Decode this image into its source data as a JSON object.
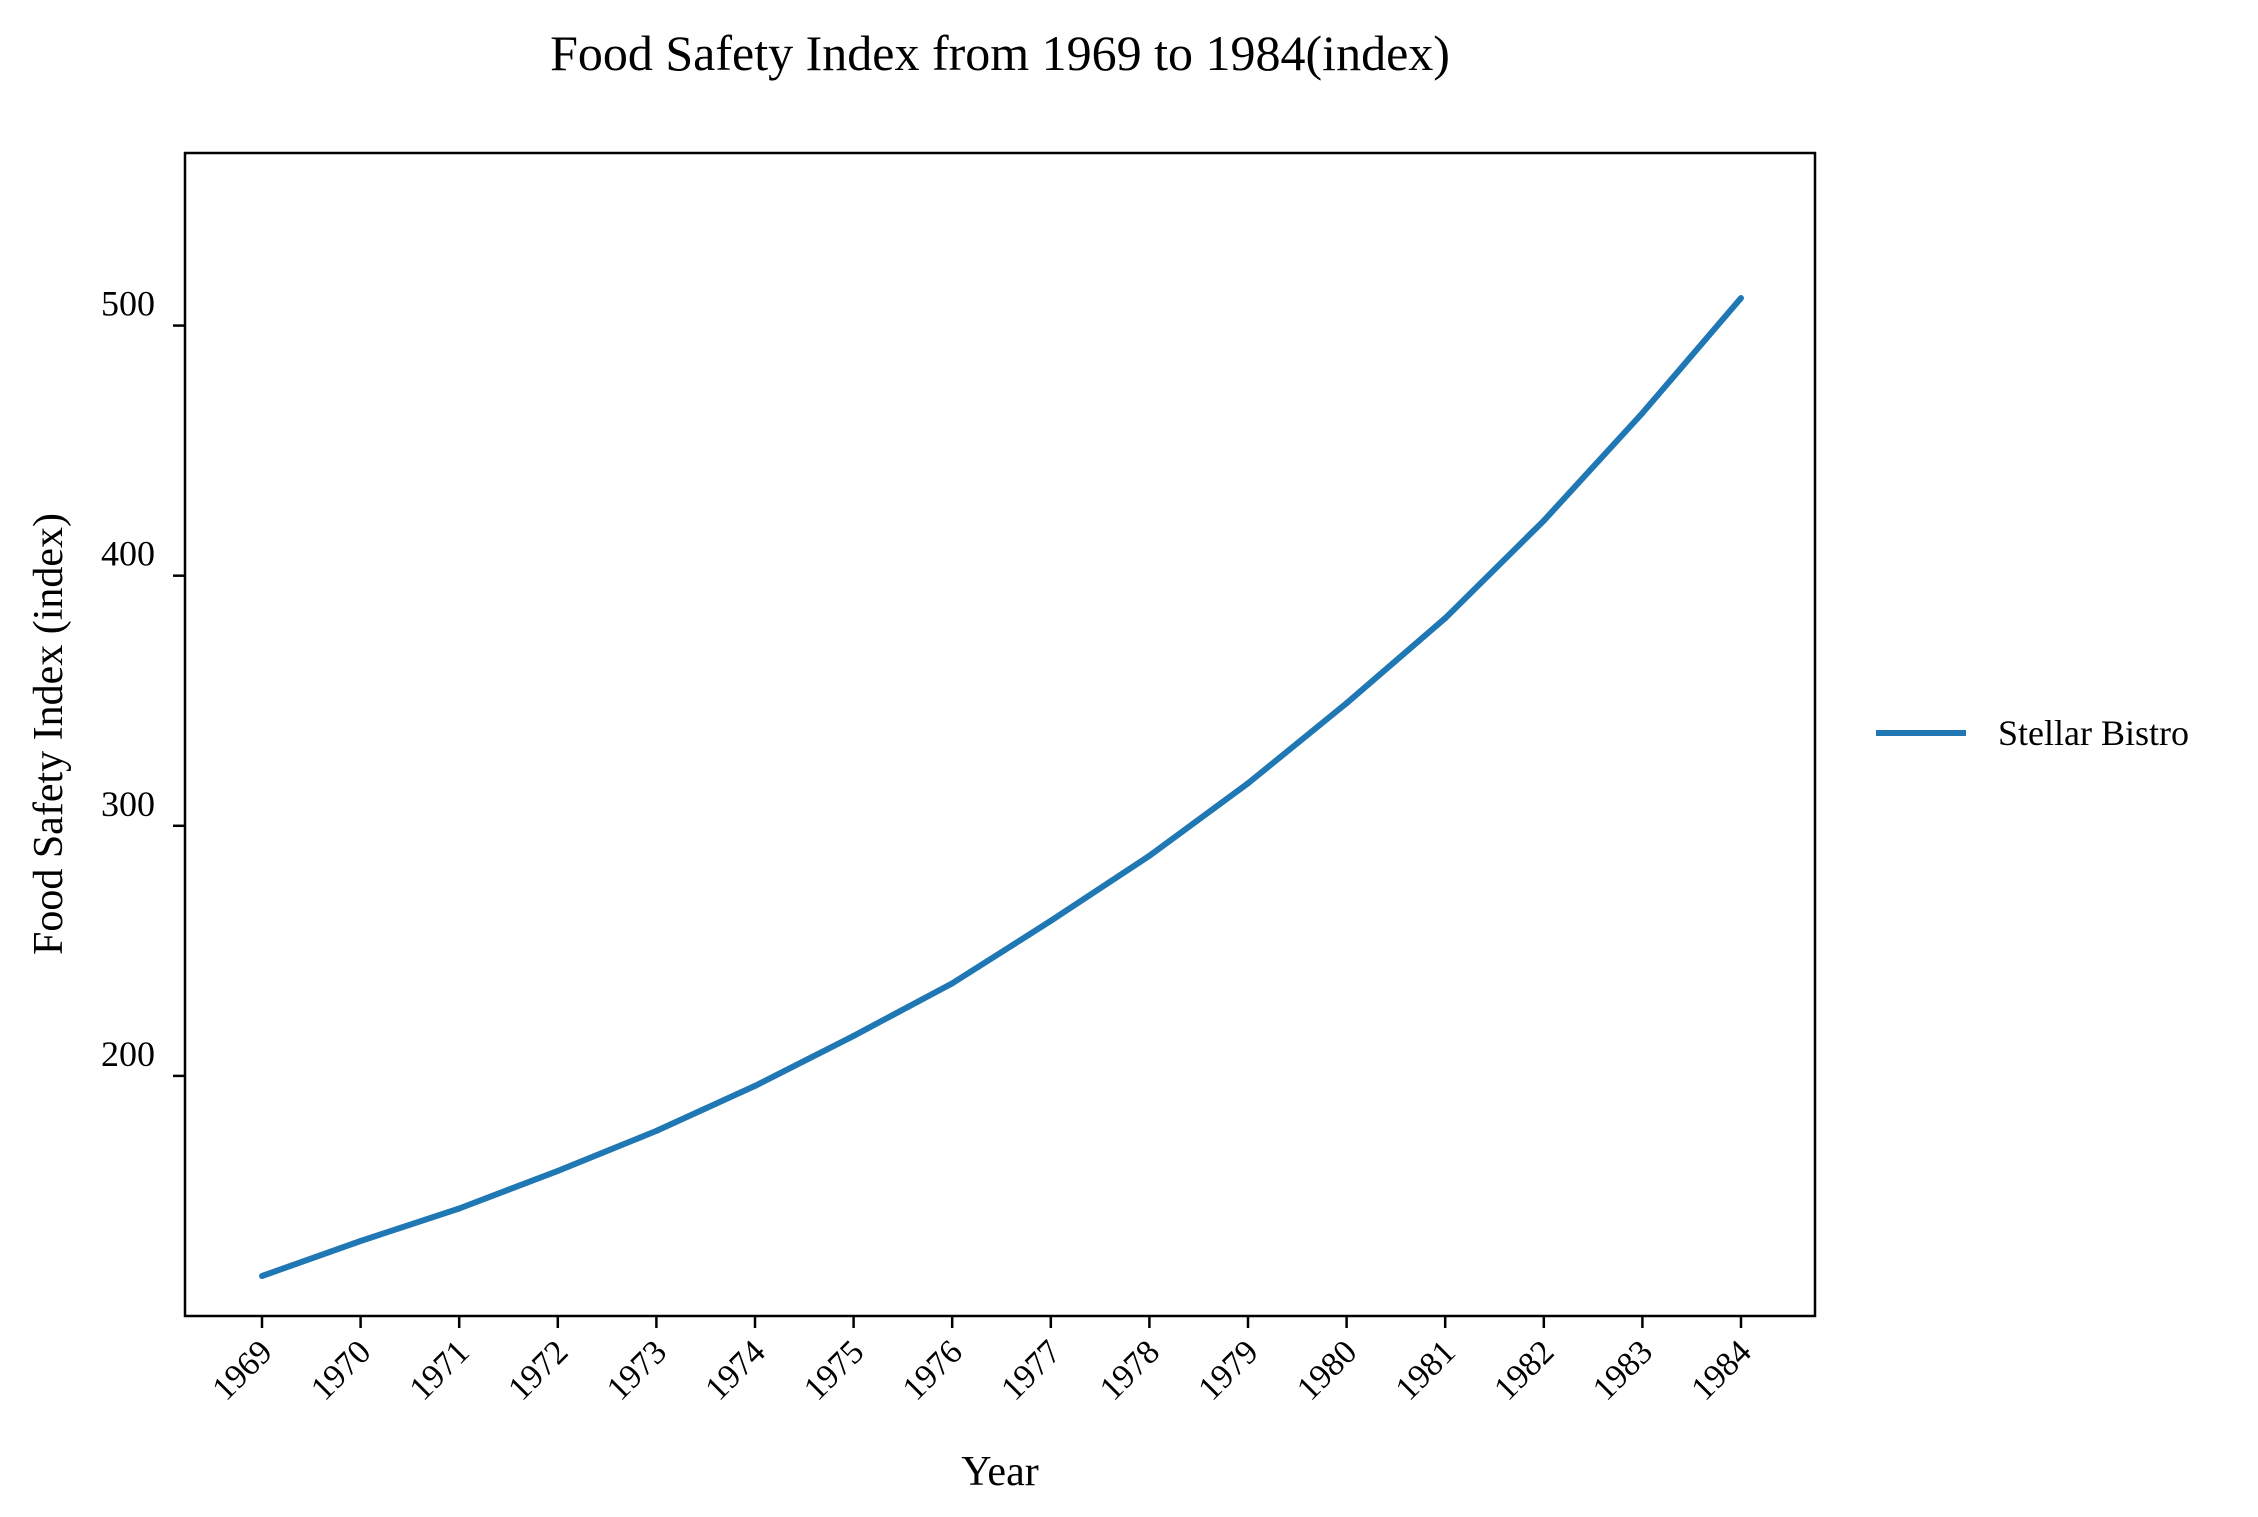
{
  "chart_data": {
    "type": "line",
    "title": "Food Safety Index from 1969 to 1984(index)",
    "xlabel": "Year",
    "ylabel": "Food Safety Index (index)",
    "x": [
      "1969",
      "1970",
      "1971",
      "1972",
      "1973",
      "1974",
      "1975",
      "1976",
      "1977",
      "1978",
      "1979",
      "1980",
      "1981",
      "1982",
      "1983",
      "1984"
    ],
    "yticks": [
      "200",
      "300",
      "400",
      "500"
    ],
    "ylim": [
      104,
      569
    ],
    "series": [
      {
        "name": "Stellar Bistro",
        "color": "#1f77b4",
        "values": [
          120,
          134,
          147,
          162,
          178,
          196,
          216,
          237,
          262,
          288,
          317,
          349,
          383,
          422,
          465,
          511
        ]
      }
    ],
    "legend_position": "right",
    "grid": false
  }
}
